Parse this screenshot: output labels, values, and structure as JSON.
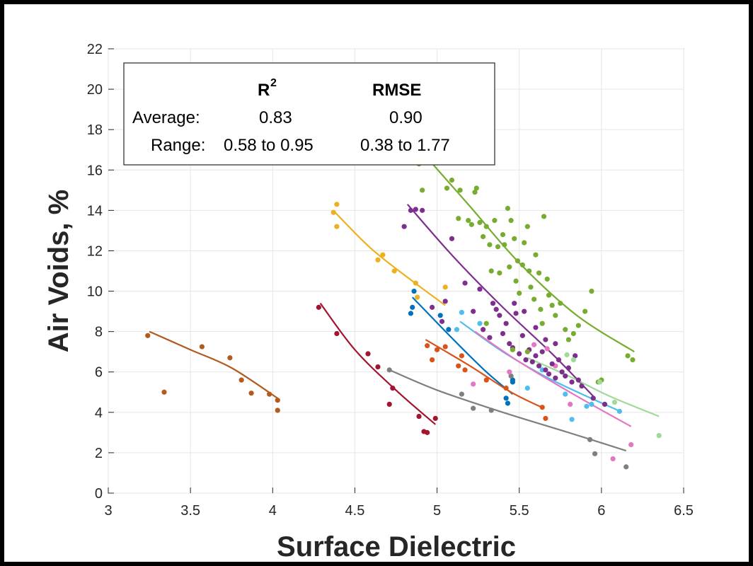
{
  "chart_data": {
    "type": "scatter",
    "xlabel": "Surface Dielectric",
    "ylabel": "Air Voids, %",
    "xlim": [
      3,
      6.5
    ],
    "ylim": [
      0,
      22
    ],
    "x_ticks": [
      "3",
      "3.5",
      "4",
      "4.5",
      "5",
      "5.5",
      "6",
      "6.5"
    ],
    "y_ticks": [
      "0",
      "2",
      "4",
      "6",
      "8",
      "10",
      "12",
      "14",
      "16",
      "18",
      "20",
      "22"
    ],
    "grid": true,
    "stats_box": {
      "r2_header": "R",
      "r2_sup": "2",
      "rmse_header": "RMSE",
      "average_label": "Average:",
      "average_r2": "0.83",
      "average_rmse": "0.90",
      "range_label": "Range:",
      "range_r2": "0.58 to 0.95",
      "range_rmse": "0.38 to 1.77"
    },
    "series": [
      {
        "color": "#b35a1f",
        "points": [
          [
            3.24,
            7.8
          ],
          [
            3.34,
            5.0
          ],
          [
            3.57,
            7.25
          ],
          [
            3.74,
            6.7
          ],
          [
            3.81,
            5.6
          ],
          [
            3.87,
            4.95
          ],
          [
            3.98,
            4.9
          ],
          [
            4.03,
            4.6
          ],
          [
            4.03,
            4.1
          ]
        ],
        "fit": [
          [
            3.25,
            8.0
          ],
          [
            3.5,
            7.1
          ],
          [
            3.75,
            6.2
          ],
          [
            4.03,
            4.7
          ]
        ]
      },
      {
        "color": "#a2142f",
        "points": [
          [
            4.28,
            9.2
          ],
          [
            4.39,
            7.9
          ],
          [
            4.58,
            6.9
          ],
          [
            4.64,
            6.25
          ],
          [
            4.71,
            4.4
          ],
          [
            4.73,
            5.2
          ],
          [
            4.89,
            3.8
          ],
          [
            4.92,
            3.05
          ],
          [
            4.94,
            3.0
          ],
          [
            4.99,
            3.7
          ]
        ],
        "fit": [
          [
            4.29,
            9.4
          ],
          [
            4.5,
            7.1
          ],
          [
            4.75,
            5.1
          ],
          [
            4.99,
            3.4
          ]
        ]
      },
      {
        "color": "#edb120",
        "points": [
          [
            4.37,
            13.9
          ],
          [
            4.39,
            14.3
          ],
          [
            4.39,
            13.2
          ],
          [
            4.64,
            11.55
          ],
          [
            4.67,
            11.8
          ],
          [
            4.74,
            11.0
          ],
          [
            4.87,
            10.4
          ],
          [
            4.88,
            9.7
          ],
          [
            5.05,
            10.2
          ]
        ],
        "fit": [
          [
            4.38,
            13.9
          ],
          [
            4.6,
            12.1
          ],
          [
            4.85,
            10.5
          ],
          [
            5.05,
            9.3
          ]
        ]
      },
      {
        "color": "#0072bd",
        "points": [
          [
            4.84,
            8.9
          ],
          [
            4.85,
            9.2
          ],
          [
            4.86,
            10.0
          ],
          [
            5.02,
            8.8
          ],
          [
            5.07,
            8.1
          ],
          [
            5.42,
            4.7
          ],
          [
            5.43,
            4.45
          ],
          [
            5.46,
            5.6
          ],
          [
            5.46,
            5.5
          ]
        ],
        "fit": [
          [
            4.85,
            9.7
          ],
          [
            5.1,
            7.6
          ],
          [
            5.3,
            6.0
          ],
          [
            5.46,
            4.9
          ]
        ]
      },
      {
        "color": "#d95319",
        "points": [
          [
            4.94,
            7.3
          ],
          [
            4.97,
            6.6
          ],
          [
            5.0,
            7.1
          ],
          [
            5.05,
            7.25
          ],
          [
            5.13,
            6.3
          ],
          [
            5.15,
            6.8
          ],
          [
            5.17,
            6.1
          ],
          [
            5.3,
            5.6
          ],
          [
            5.42,
            5.2
          ],
          [
            5.64,
            4.25
          ],
          [
            5.66,
            3.7
          ]
        ],
        "fit": [
          [
            4.93,
            7.6
          ],
          [
            5.2,
            6.3
          ],
          [
            5.45,
            5.0
          ],
          [
            5.65,
            4.2
          ]
        ]
      },
      {
        "color": "#7f7f7f",
        "points": [
          [
            4.71,
            6.1
          ],
          [
            5.15,
            4.9
          ],
          [
            5.22,
            4.2
          ],
          [
            5.33,
            4.1
          ],
          [
            5.45,
            5.8
          ],
          [
            5.93,
            2.65
          ],
          [
            5.96,
            1.95
          ],
          [
            6.15,
            1.3
          ]
        ],
        "fit": [
          [
            4.71,
            6.1
          ],
          [
            5.0,
            5.1
          ],
          [
            5.4,
            4.0
          ],
          [
            5.8,
            3.0
          ],
          [
            6.15,
            2.1
          ]
        ]
      },
      {
        "color": "#4dbeee",
        "points": [
          [
            5.12,
            8.1
          ],
          [
            5.15,
            8.95
          ],
          [
            5.26,
            8.4
          ],
          [
            5.55,
            5.2
          ],
          [
            5.64,
            6.1
          ],
          [
            5.78,
            4.9
          ],
          [
            5.82,
            3.65
          ],
          [
            5.91,
            4.3
          ],
          [
            5.94,
            4.4
          ],
          [
            6.11,
            4.05
          ]
        ],
        "fit": [
          [
            5.14,
            8.5
          ],
          [
            5.4,
            7.0
          ],
          [
            5.7,
            5.6
          ],
          [
            6.1,
            4.1
          ]
        ]
      },
      {
        "color": "#e377c2",
        "points": [
          [
            5.22,
            5.4
          ],
          [
            5.44,
            6.0
          ],
          [
            5.59,
            7.35
          ],
          [
            5.67,
            7.15
          ],
          [
            5.72,
            6.3
          ],
          [
            5.81,
            4.4
          ],
          [
            6.07,
            1.7
          ],
          [
            6.18,
            2.4
          ]
        ],
        "fit": [
          [
            5.23,
            8.0
          ],
          [
            5.5,
            6.5
          ],
          [
            5.85,
            4.8
          ],
          [
            6.18,
            3.3
          ]
        ]
      },
      {
        "color": "#7e2f8e",
        "points": [
          [
            4.8,
            13.2
          ],
          [
            4.84,
            14.0
          ],
          [
            4.87,
            14.05
          ],
          [
            4.91,
            14.0
          ],
          [
            4.97,
            9.2
          ],
          [
            5.03,
            8.5
          ],
          [
            5.05,
            9.5
          ],
          [
            5.09,
            12.6
          ],
          [
            5.17,
            10.4
          ],
          [
            5.22,
            9.0
          ],
          [
            5.26,
            10.1
          ],
          [
            5.28,
            8.1
          ],
          [
            5.32,
            7.7
          ],
          [
            5.34,
            9.4
          ],
          [
            5.36,
            9.1
          ],
          [
            5.38,
            8.8
          ],
          [
            5.4,
            7.9
          ],
          [
            5.42,
            8.4
          ],
          [
            5.44,
            7.4
          ],
          [
            5.46,
            7.2
          ],
          [
            5.48,
            8.9
          ],
          [
            5.5,
            6.9
          ],
          [
            5.52,
            7.8
          ],
          [
            5.54,
            6.6
          ],
          [
            5.56,
            7.1
          ],
          [
            5.58,
            6.5
          ],
          [
            5.6,
            6.8
          ],
          [
            5.62,
            6.3
          ],
          [
            5.64,
            7.0
          ],
          [
            5.66,
            6.1
          ],
          [
            5.68,
            5.9
          ],
          [
            5.7,
            6.4
          ],
          [
            5.72,
            5.7
          ],
          [
            5.74,
            6.6
          ],
          [
            5.76,
            6.0
          ],
          [
            5.78,
            5.8
          ],
          [
            5.8,
            6.2
          ],
          [
            5.82,
            5.5
          ],
          [
            5.84,
            6.8
          ],
          [
            5.86,
            5.6
          ],
          [
            5.88,
            5.3
          ],
          [
            5.95,
            4.7
          ],
          [
            6.02,
            4.4
          ],
          [
            5.47,
            9.4
          ],
          [
            5.53,
            9.0
          ],
          [
            5.6,
            8.2
          ],
          [
            5.66,
            7.6
          ],
          [
            5.72,
            7.4
          ]
        ],
        "fit": [
          [
            4.82,
            14.3
          ],
          [
            5.1,
            11.7
          ],
          [
            5.4,
            9.2
          ],
          [
            5.7,
            6.9
          ],
          [
            5.95,
            4.8
          ]
        ]
      },
      {
        "color": "#77ac30",
        "points": [
          [
            4.89,
            16.3
          ],
          [
            4.91,
            15.0
          ],
          [
            5.06,
            15.1
          ],
          [
            5.09,
            15.5
          ],
          [
            5.13,
            13.6
          ],
          [
            5.14,
            15.0
          ],
          [
            5.19,
            13.5
          ],
          [
            5.21,
            13.3
          ],
          [
            5.23,
            14.9
          ],
          [
            5.24,
            15.1
          ],
          [
            5.26,
            13.4
          ],
          [
            5.28,
            12.7
          ],
          [
            5.3,
            13.2
          ],
          [
            5.32,
            12.3
          ],
          [
            5.33,
            11.0
          ],
          [
            5.35,
            13.5
          ],
          [
            5.37,
            12.2
          ],
          [
            5.38,
            10.9
          ],
          [
            5.4,
            12.8
          ],
          [
            5.41,
            12.3
          ],
          [
            5.43,
            14.1
          ],
          [
            5.44,
            11.2
          ],
          [
            5.45,
            13.5
          ],
          [
            5.47,
            12.6
          ],
          [
            5.48,
            10.5
          ],
          [
            5.49,
            11.5
          ],
          [
            5.5,
            9.9
          ],
          [
            5.52,
            11.3
          ],
          [
            5.53,
            12.4
          ],
          [
            5.55,
            13.2
          ],
          [
            5.56,
            11.0
          ],
          [
            5.57,
            10.2
          ],
          [
            5.59,
            9.6
          ],
          [
            5.6,
            11.8
          ],
          [
            5.62,
            10.9
          ],
          [
            5.63,
            9.1
          ],
          [
            5.64,
            8.4
          ],
          [
            5.65,
            13.7
          ],
          [
            5.67,
            10.6
          ],
          [
            5.68,
            9.8
          ],
          [
            5.7,
            9.3
          ],
          [
            5.72,
            8.8
          ],
          [
            5.75,
            9.4
          ],
          [
            5.78,
            8.1
          ],
          [
            5.8,
            7.6
          ],
          [
            5.83,
            7.9
          ],
          [
            5.86,
            8.3
          ],
          [
            5.9,
            9.0
          ],
          [
            5.94,
            10.0
          ],
          [
            5.98,
            5.5
          ],
          [
            6.0,
            5.6
          ],
          [
            6.16,
            6.8
          ],
          [
            6.19,
            6.6
          ],
          [
            5.46,
            7.1
          ],
          [
            5.55,
            7.0
          ],
          [
            5.3,
            8.4
          ]
        ],
        "fit": [
          [
            4.94,
            16.6
          ],
          [
            5.2,
            14.2
          ],
          [
            5.5,
            11.4
          ],
          [
            5.85,
            8.8
          ],
          [
            6.2,
            7.0
          ]
        ]
      },
      {
        "color": "#a1d99b",
        "points": [
          [
            5.79,
            6.85
          ],
          [
            5.83,
            6.6
          ],
          [
            5.99,
            5.5
          ],
          [
            6.08,
            4.5
          ],
          [
            6.35,
            2.85
          ]
        ],
        "fit": [
          [
            5.55,
            6.7
          ],
          [
            5.8,
            5.8
          ],
          [
            6.05,
            4.8
          ],
          [
            6.35,
            3.8
          ]
        ]
      }
    ]
  }
}
